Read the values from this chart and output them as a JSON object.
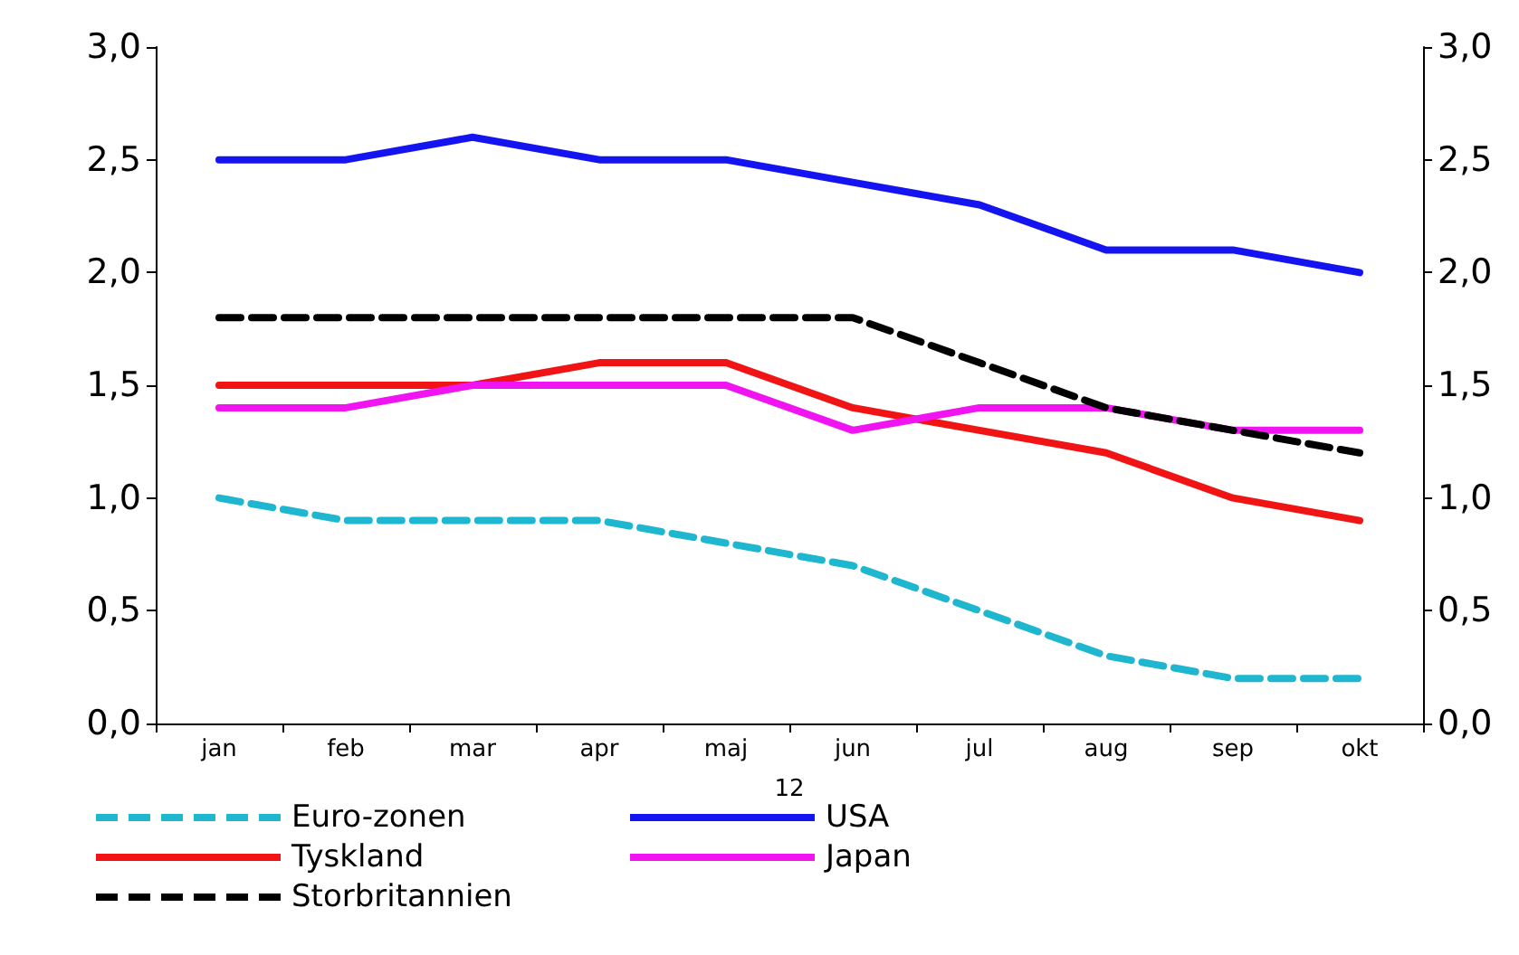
{
  "chart_data": {
    "type": "line",
    "xlabel": "12",
    "categories": [
      "jan",
      "feb",
      "mar",
      "apr",
      "maj",
      "jun",
      "jul",
      "aug",
      "sep",
      "okt"
    ],
    "series": [
      {
        "name": "Euro-zonen",
        "color": "#1fb6d0",
        "line_style": "dashed",
        "values": [
          1.0,
          0.9,
          0.9,
          0.9,
          0.8,
          0.7,
          0.5,
          0.3,
          0.2,
          0.2
        ]
      },
      {
        "name": "USA",
        "color": "#1414f0",
        "line_style": "solid",
        "values": [
          2.5,
          2.5,
          2.6,
          2.5,
          2.5,
          2.4,
          2.3,
          2.1,
          2.1,
          2.0
        ]
      },
      {
        "name": "Tyskland",
        "color": "#f01414",
        "line_style": "solid",
        "values": [
          1.5,
          1.5,
          1.5,
          1.6,
          1.6,
          1.4,
          1.3,
          1.2,
          1.0,
          0.9
        ]
      },
      {
        "name": "Japan",
        "color": "#f014f0",
        "line_style": "solid",
        "values": [
          1.4,
          1.4,
          1.5,
          1.5,
          1.5,
          1.3,
          1.4,
          1.4,
          1.3,
          1.3
        ]
      },
      {
        "name": "Storbritannien",
        "color": "#000000",
        "line_style": "dashed",
        "values": [
          1.8,
          1.8,
          1.8,
          1.8,
          1.8,
          1.8,
          1.6,
          1.4,
          1.3,
          1.2
        ]
      }
    ],
    "ylim": [
      0,
      3
    ],
    "yticks": [
      {
        "value": 0,
        "label": "0,0"
      },
      {
        "value": 0.5,
        "label": "0,5"
      },
      {
        "value": 1,
        "label": "1,0"
      },
      {
        "value": 1.5,
        "label": "1,5"
      },
      {
        "value": 2,
        "label": "2,0"
      },
      {
        "value": 2.5,
        "label": "2,5"
      },
      {
        "value": 3,
        "label": "3,0"
      }
    ],
    "y2lim": [
      0,
      3
    ],
    "y2ticks": [
      {
        "value": 0,
        "label": "0,0"
      },
      {
        "value": 0.5,
        "label": "0,5"
      },
      {
        "value": 1,
        "label": "1,0"
      },
      {
        "value": 1.5,
        "label": "1,5"
      },
      {
        "value": 2,
        "label": "2,0"
      },
      {
        "value": 2.5,
        "label": "2,5"
      },
      {
        "value": 3,
        "label": "3,0"
      }
    ],
    "grid": false,
    "legend": "bottom",
    "marker": "none"
  }
}
